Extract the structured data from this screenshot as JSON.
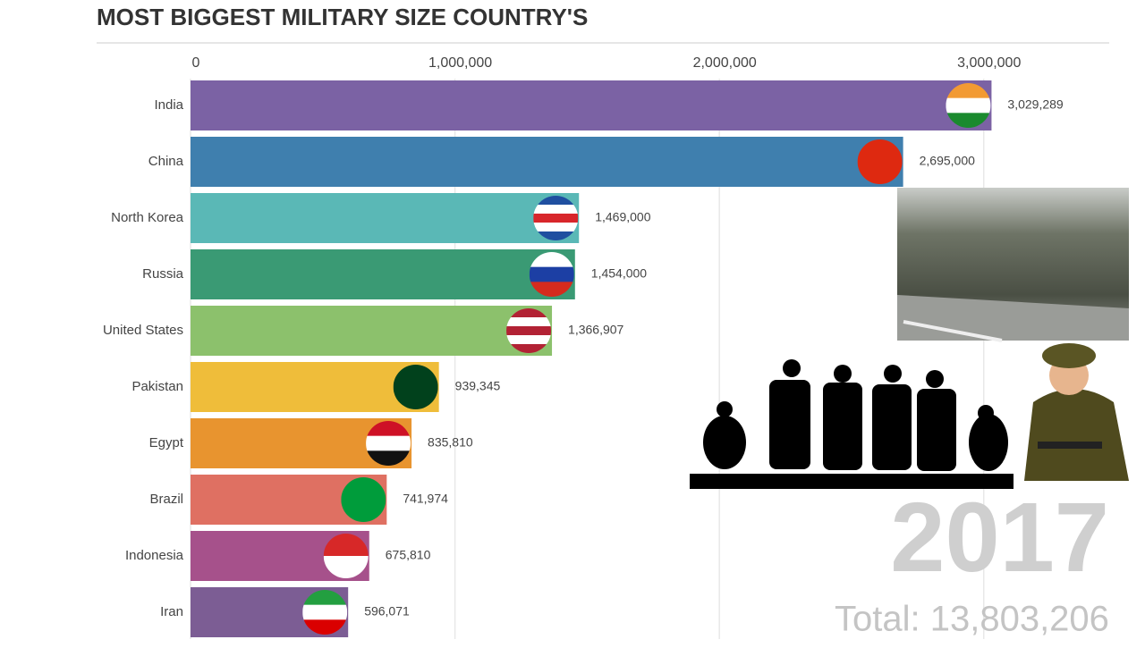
{
  "chart_data": {
    "type": "bar",
    "orientation": "horizontal",
    "title": "MOST BIGGEST MILITARY SIZE COUNTRY'S",
    "categories": [
      "India",
      "China",
      "North Korea",
      "Russia",
      "United States",
      "Pakistan",
      "Egypt",
      "Brazil",
      "Indonesia",
      "Iran"
    ],
    "values": [
      3029289,
      2695000,
      1469000,
      1454000,
      1366907,
      939345,
      835810,
      741974,
      675810,
      596071
    ],
    "value_labels": [
      "3,029,289",
      "2,695,000",
      "1,469,000",
      "1,454,000",
      "1,366,907",
      "939,345",
      "835,810",
      "741,974",
      "675,810",
      "596,071"
    ],
    "colors": [
      "#7b62a4",
      "#3f7fae",
      "#5ab8b6",
      "#3a9a74",
      "#8cc16c",
      "#efbd3a",
      "#e8942f",
      "#df7062",
      "#a6518b",
      "#7c5d94"
    ],
    "xlim": [
      0,
      3400000
    ],
    "xticks": [
      0,
      {
        "value": 1000000,
        "label": "1,000,000"
      },
      {
        "value": 2000000,
        "label": "2,000,000"
      },
      {
        "value": 3000000,
        "label": "3,000,000"
      }
    ],
    "grid": true,
    "year": "2017",
    "total": "Total: 13,803,206"
  }
}
